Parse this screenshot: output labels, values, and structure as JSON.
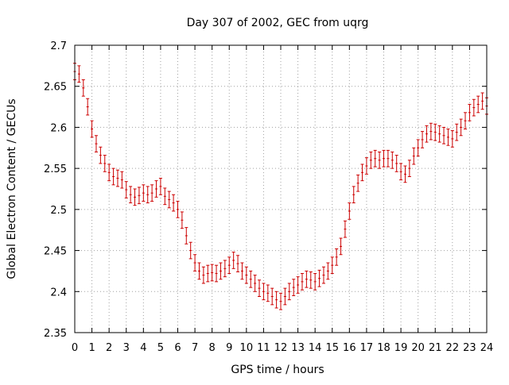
{
  "chart_data": {
    "type": "scatter",
    "title": "Day 307 of 2002, GEC from uqrg",
    "xlabel": "GPS time / hours",
    "ylabel": "Global Electron Content / GECUs",
    "xlim": [
      0,
      24
    ],
    "ylim": [
      2.35,
      2.7
    ],
    "x_ticks": [
      0,
      1,
      2,
      3,
      4,
      5,
      6,
      7,
      8,
      9,
      10,
      11,
      12,
      13,
      14,
      15,
      16,
      17,
      18,
      19,
      20,
      21,
      22,
      23,
      24
    ],
    "y_ticks": [
      2.35,
      2.4,
      2.45,
      2.5,
      2.55,
      2.6,
      2.65,
      2.7
    ],
    "y_tick_labels": [
      "2.35",
      "2.4",
      "2.45",
      "2.5",
      "2.55",
      "2.6",
      "2.65",
      "2.7"
    ],
    "grid": true,
    "series_color": "#cc0000",
    "series": [
      {
        "x": [
          0,
          0.25,
          0.5,
          0.75,
          1,
          1.25,
          1.5,
          1.75,
          2,
          2.25,
          2.5,
          2.75,
          3,
          3.25,
          3.5,
          3.75,
          4,
          4.25,
          4.5,
          4.75,
          5,
          5.25,
          5.5,
          5.75,
          6,
          6.25,
          6.5,
          6.75,
          7,
          7.25,
          7.5,
          7.75,
          8,
          8.25,
          8.5,
          8.75,
          9,
          9.25,
          9.5,
          9.75,
          10,
          10.25,
          10.5,
          10.75,
          11,
          11.25,
          11.5,
          11.75,
          12,
          12.25,
          12.5,
          12.75,
          13,
          13.25,
          13.5,
          13.75,
          14,
          14.25,
          14.5,
          14.75,
          15,
          15.25,
          15.5,
          15.75,
          16,
          16.25,
          16.5,
          16.75,
          17,
          17.25,
          17.5,
          17.75,
          18,
          18.25,
          18.5,
          18.75,
          19,
          19.25,
          19.5,
          19.75,
          20,
          20.25,
          20.5,
          20.75,
          21,
          21.25,
          21.5,
          21.75,
          22,
          22.25,
          22.5,
          22.75,
          23,
          23.25,
          23.5,
          23.75,
          24
        ],
        "y": [
          2.668,
          2.665,
          2.648,
          2.625,
          2.598,
          2.58,
          2.566,
          2.556,
          2.545,
          2.54,
          2.538,
          2.536,
          2.524,
          2.518,
          2.515,
          2.517,
          2.52,
          2.518,
          2.52,
          2.525,
          2.528,
          2.516,
          2.512,
          2.508,
          2.5,
          2.487,
          2.468,
          2.45,
          2.435,
          2.425,
          2.42,
          2.422,
          2.423,
          2.422,
          2.425,
          2.428,
          2.432,
          2.438,
          2.434,
          2.425,
          2.42,
          2.415,
          2.41,
          2.404,
          2.4,
          2.398,
          2.394,
          2.39,
          2.388,
          2.394,
          2.4,
          2.405,
          2.408,
          2.412,
          2.415,
          2.414,
          2.412,
          2.416,
          2.42,
          2.425,
          2.432,
          2.442,
          2.455,
          2.476,
          2.498,
          2.518,
          2.532,
          2.545,
          2.553,
          2.56,
          2.562,
          2.56,
          2.562,
          2.562,
          2.56,
          2.556,
          2.546,
          2.543,
          2.55,
          2.565,
          2.575,
          2.585,
          2.592,
          2.595,
          2.594,
          2.592,
          2.59,
          2.588,
          2.586,
          2.594,
          2.6,
          2.608,
          2.618,
          2.624,
          2.628,
          2.632,
          2.626
        ],
        "err": 0.01
      }
    ]
  }
}
